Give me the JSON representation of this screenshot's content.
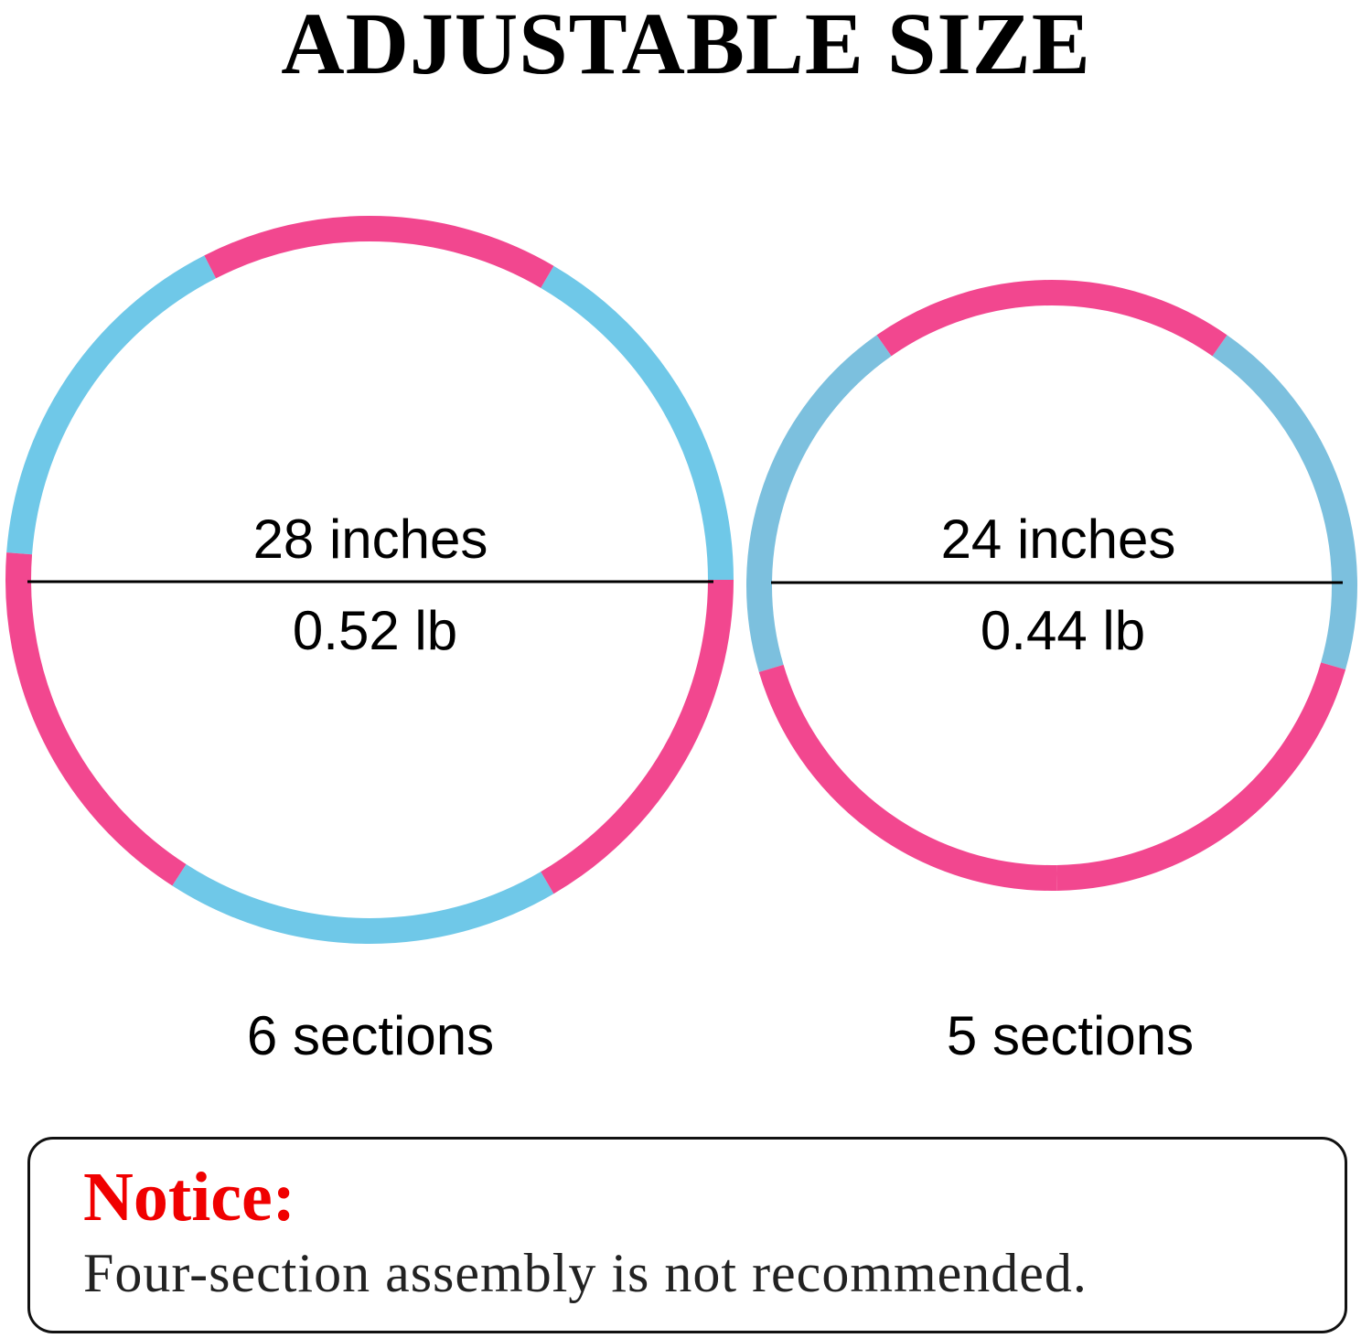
{
  "title": "ADJUSTABLE SIZE",
  "colors": {
    "pink": "#f2478f",
    "blue_left": "#6fc8e8",
    "blue_right": "#7cc0de",
    "notice_red": "#f00000"
  },
  "hoops": [
    {
      "diameter": "28 inches",
      "weight": "0.52 lb",
      "sections_label": "6 sections",
      "section_count": 6,
      "section_colors": [
        "blue",
        "pink",
        "blue",
        "pink",
        "blue",
        "pink"
      ]
    },
    {
      "diameter": "24 inches",
      "weight": "0.44 lb",
      "sections_label": "5 sections",
      "section_count": 5,
      "section_colors": [
        "blue",
        "pink",
        "blue",
        "pink",
        "pink"
      ]
    }
  ],
  "notice": {
    "heading": "Notice:",
    "text": "Four-section assembly is not recommended."
  }
}
